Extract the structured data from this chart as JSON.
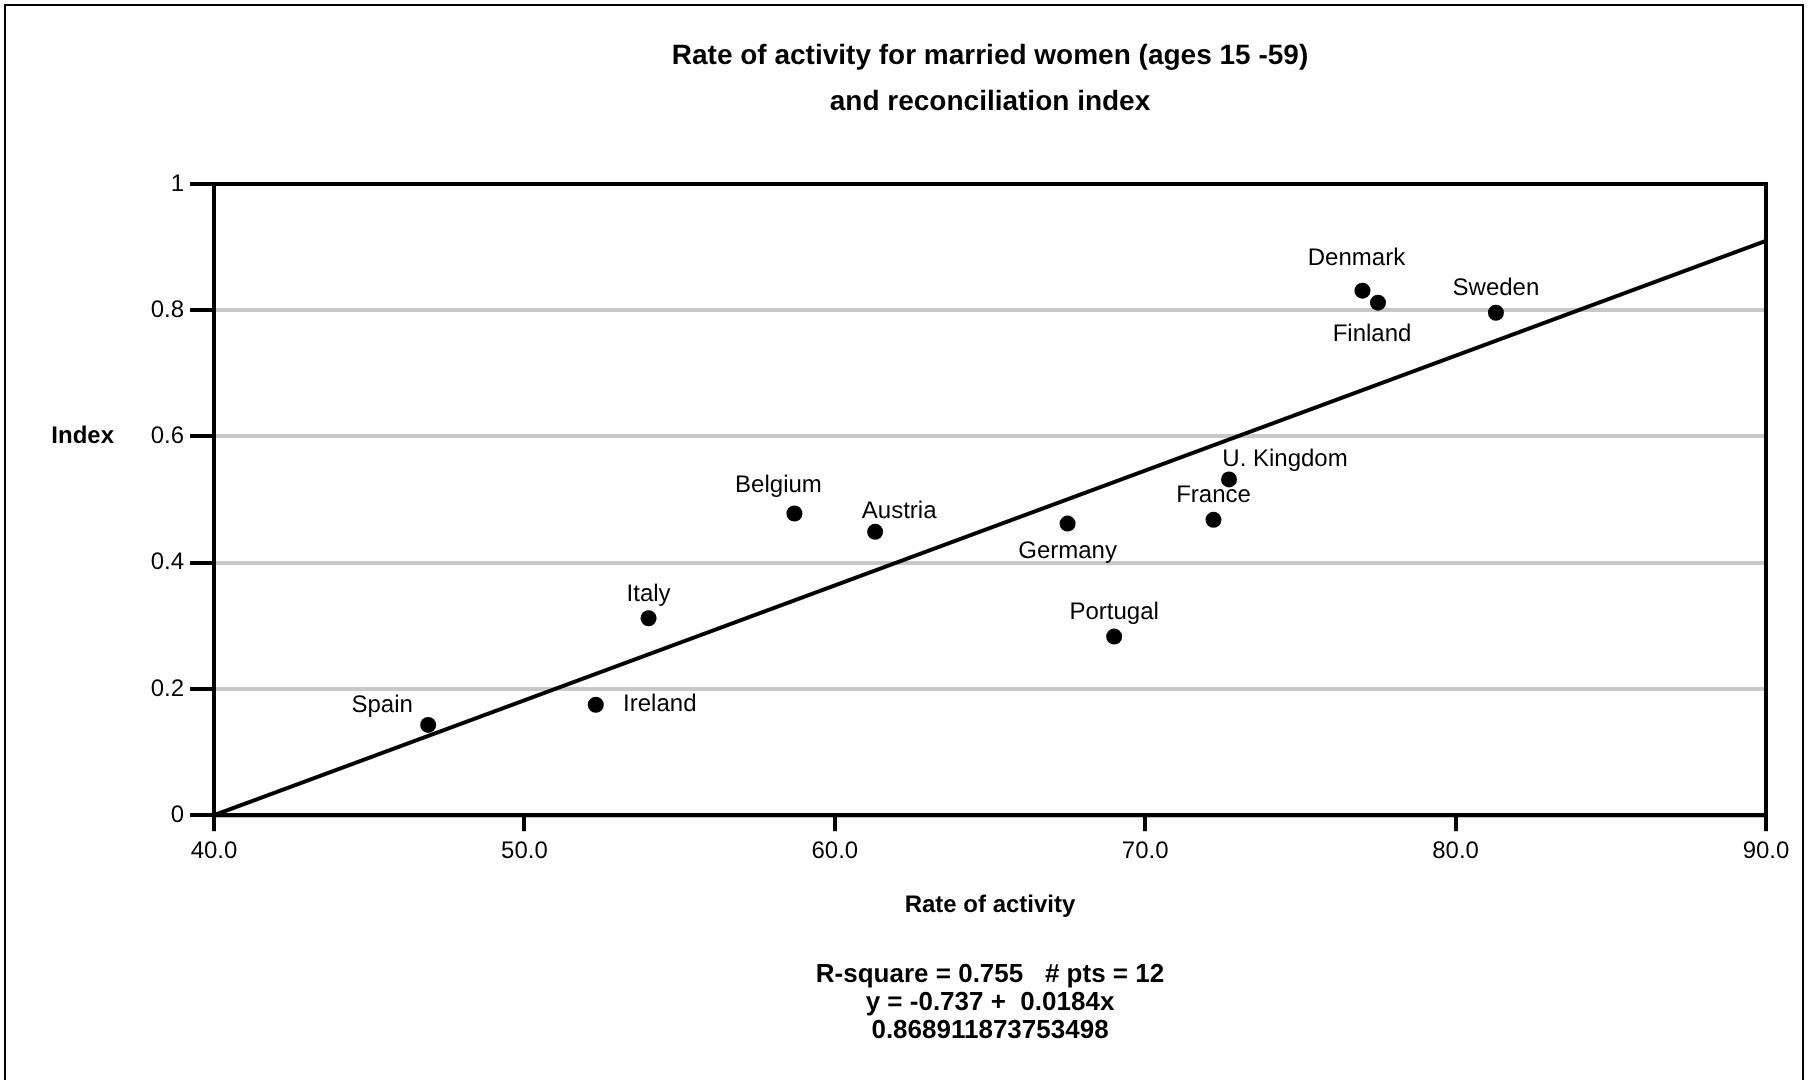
{
  "chart_data": {
    "type": "scatter",
    "title": "Rate of activity for married women (ages 15 -59)",
    "subtitle": "and reconciliation index",
    "xlabel": "Rate of activity",
    "ylabel": "Index",
    "xlim": [
      40,
      90
    ],
    "xticks": [
      {
        "value": 40,
        "label": "40.0"
      },
      {
        "value": 50,
        "label": "50.0"
      },
      {
        "value": 60,
        "label": "60.0"
      },
      {
        "value": 70,
        "label": "70.0"
      },
      {
        "value": 80,
        "label": "80.0"
      },
      {
        "value": 90,
        "label": "90.0"
      }
    ],
    "ylim": [
      0,
      1
    ],
    "yticks": [
      0,
      0.2,
      0.4,
      0.6,
      0.8,
      1
    ],
    "grid": "y",
    "legend": false,
    "marker": "circle",
    "series": [
      {
        "type": "scatter",
        "color": "#000000",
        "x": [
          46.9,
          52.3,
          54.0,
          58.7,
          61.3,
          67.5,
          69.0,
          72.2,
          72.7,
          77.0,
          77.5,
          81.3
        ],
        "values": [
          0.143,
          0.175,
          0.312,
          0.478,
          0.449,
          0.462,
          0.283,
          0.468,
          0.532,
          0.831,
          0.812,
          0.796
        ]
      },
      {
        "type": "line",
        "color": "#000000",
        "marker": "none",
        "x": [
          40,
          90
        ],
        "values": [
          0,
          0.91
        ]
      }
    ],
    "annotations": [
      {
        "text": "Spain",
        "x": 46.9,
        "y": 0.143
      },
      {
        "text": "Ireland",
        "x": 52.3,
        "y": 0.175
      },
      {
        "text": "Italy",
        "x": 54.0,
        "y": 0.312
      },
      {
        "text": "Belgium",
        "x": 58.7,
        "y": 0.478
      },
      {
        "text": "Austria",
        "x": 61.3,
        "y": 0.449
      },
      {
        "text": "Germany",
        "x": 67.5,
        "y": 0.462
      },
      {
        "text": "Portugal",
        "x": 69.0,
        "y": 0.283
      },
      {
        "text": "France",
        "x": 72.2,
        "y": 0.468
      },
      {
        "text": "U. Kingdom",
        "x": 72.7,
        "y": 0.532
      },
      {
        "text": "Denmark",
        "x": 77.0,
        "y": 0.831
      },
      {
        "text": "Finland",
        "x": 77.5,
        "y": 0.812
      },
      {
        "text": "Sweden",
        "x": 81.3,
        "y": 0.796
      },
      "R-square = 0.755   # pts = 12",
      "y = -0.737 +  0.0184x",
      "0.868911873753498"
    ]
  }
}
